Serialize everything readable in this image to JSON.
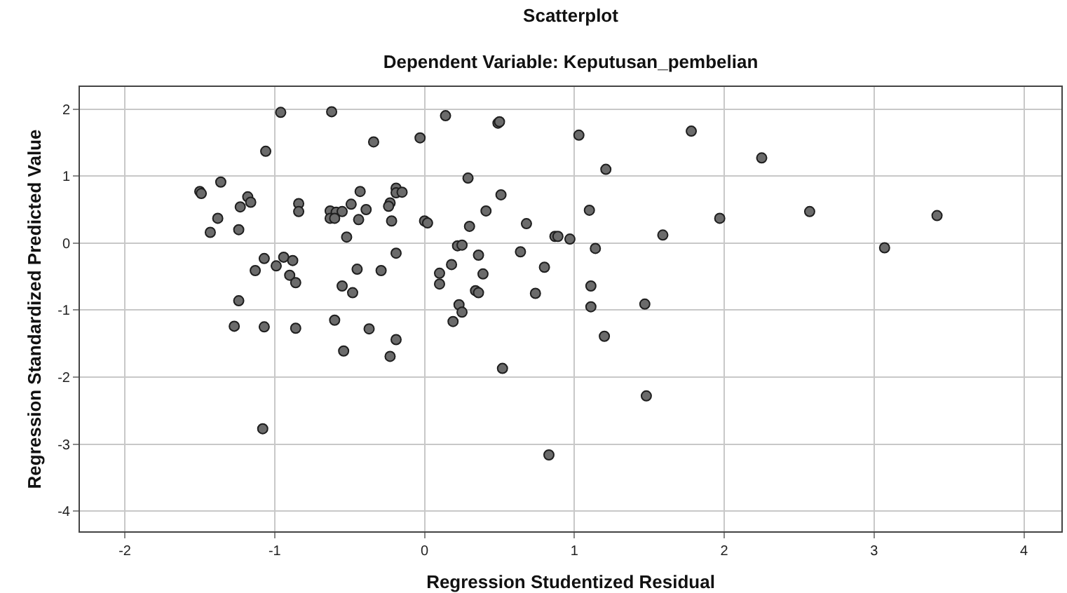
{
  "chart_data": {
    "type": "scatter",
    "title": "Scatterplot",
    "subtitle": "Dependent Variable: Keputusan_pembelian",
    "xlabel": "Regression Studentized Residual",
    "ylabel": "Regression Standardized Predicted Value",
    "xlim": [
      -2.3,
      4.25
    ],
    "ylim": [
      -4.3,
      2.33
    ],
    "xticks": [
      -2,
      -1,
      0,
      1,
      2,
      3,
      4
    ],
    "yticks": [
      -4,
      -3,
      -2,
      -1,
      0,
      1,
      2
    ],
    "grid": true,
    "marker": "circle",
    "series": [
      {
        "color": "#6b6b6b",
        "x": [
          -0.96,
          -0.62,
          -1.06,
          -0.34,
          -0.03,
          -1.36,
          -1.5,
          -1.49,
          -1.18,
          -1.16,
          -1.23,
          -1.38,
          -1.43,
          -1.24,
          -0.84,
          -0.84,
          -0.43,
          -0.49,
          -0.39,
          -0.63,
          -0.59,
          -0.63,
          -0.6,
          -0.55,
          -0.44,
          -0.52,
          -0.19,
          -0.19,
          -0.15,
          -0.23,
          -0.24,
          -0.22,
          0.0,
          0.02,
          -1.07,
          -0.94,
          -0.88,
          -0.99,
          -1.13,
          -0.9,
          -0.86,
          -0.19,
          -0.45,
          -0.29,
          -0.55,
          -0.48,
          -1.24,
          -1.27,
          -1.07,
          -0.86,
          -0.6,
          -0.37,
          -0.19,
          -0.54,
          -0.23,
          -1.08,
          0.14,
          0.49,
          0.5,
          1.03,
          1.78,
          2.25,
          0.29,
          1.21,
          0.51,
          0.41,
          1.1,
          0.3,
          0.68,
          0.87,
          0.89,
          0.97,
          1.59,
          1.97,
          0.22,
          0.25,
          0.36,
          0.64,
          1.14,
          0.18,
          0.1,
          0.39,
          0.8,
          0.1,
          0.34,
          0.36,
          0.74,
          1.11,
          0.23,
          1.11,
          1.47,
          0.25,
          0.19,
          1.2,
          0.52,
          1.48,
          0.83,
          2.57,
          3.42,
          3.07
        ],
        "values": [
          1.95,
          1.96,
          1.37,
          1.51,
          1.57,
          0.91,
          0.77,
          0.74,
          0.69,
          0.61,
          0.54,
          0.37,
          0.16,
          0.2,
          0.59,
          0.47,
          0.77,
          0.58,
          0.5,
          0.48,
          0.46,
          0.37,
          0.37,
          0.47,
          0.35,
          0.09,
          0.82,
          0.75,
          0.76,
          0.6,
          0.55,
          0.33,
          0.33,
          0.3,
          -0.23,
          -0.21,
          -0.26,
          -0.34,
          -0.41,
          -0.48,
          -0.59,
          -0.15,
          -0.39,
          -0.41,
          -0.64,
          -0.74,
          -0.86,
          -1.24,
          -1.25,
          -1.27,
          -1.15,
          -1.28,
          -1.44,
          -1.61,
          -1.69,
          -2.77,
          1.9,
          1.79,
          1.81,
          1.61,
          1.67,
          1.27,
          0.97,
          1.1,
          0.72,
          0.48,
          0.49,
          0.25,
          0.29,
          0.1,
          0.1,
          0.06,
          0.12,
          0.37,
          -0.04,
          -0.03,
          -0.18,
          -0.13,
          -0.08,
          -0.32,
          -0.45,
          -0.46,
          -0.36,
          -0.61,
          -0.71,
          -0.74,
          -0.75,
          -0.64,
          -0.92,
          -0.95,
          -0.91,
          -1.03,
          -1.17,
          -1.39,
          -1.87,
          -2.28,
          -3.16,
          0.47,
          0.41,
          -0.07
        ]
      }
    ]
  }
}
